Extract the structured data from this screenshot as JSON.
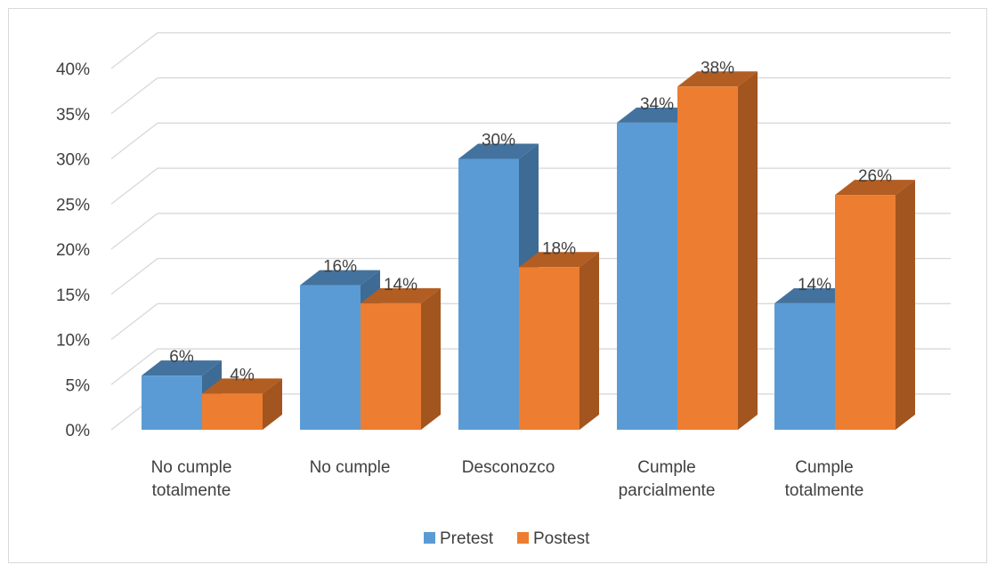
{
  "chart_data": {
    "type": "bar",
    "title": "",
    "xlabel": "",
    "ylabel": "",
    "ylim": [
      0,
      40
    ],
    "yticks": [
      "0%",
      "5%",
      "10%",
      "15%",
      "20%",
      "25%",
      "30%",
      "35%",
      "40%"
    ],
    "categories": [
      [
        "No cumple",
        "totalmente"
      ],
      [
        "No cumple"
      ],
      [
        "Desconozco"
      ],
      [
        "Cumple",
        "parcialmente"
      ],
      [
        "Cumple",
        "totalmente"
      ]
    ],
    "series": [
      {
        "name": "Pretest",
        "values": [
          6,
          16,
          30,
          34,
          14
        ],
        "labels": [
          "6%",
          "16%",
          "30%",
          "34%",
          "14%"
        ],
        "color": "#5B9BD5",
        "side_color": "#3E6B94",
        "top_color": "#43729E"
      },
      {
        "name": "Postest",
        "values": [
          4,
          14,
          18,
          38,
          26
        ],
        "labels": [
          "4%",
          "14%",
          "18%",
          "38%",
          "26%"
        ],
        "color": "#ED7D31",
        "side_color": "#A3551F",
        "top_color": "#B25D22"
      }
    ],
    "grid": true,
    "legend": "bottom",
    "style": "3d-clustered-column"
  }
}
